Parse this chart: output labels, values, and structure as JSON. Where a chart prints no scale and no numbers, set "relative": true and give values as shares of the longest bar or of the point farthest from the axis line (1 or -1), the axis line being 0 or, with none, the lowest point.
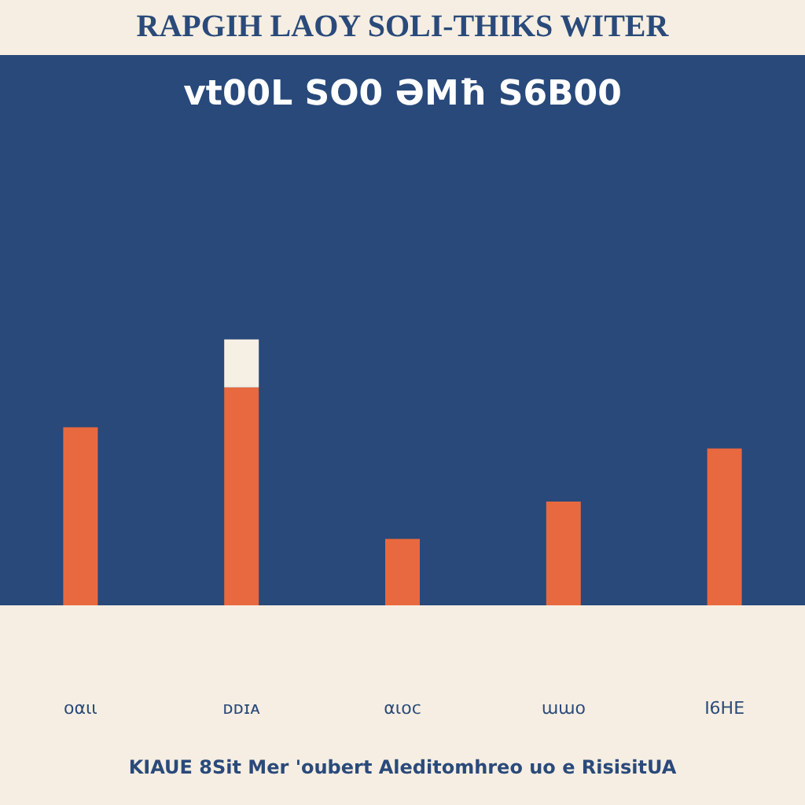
{
  "chart_data": {
    "type": "bar",
    "title": "RAPGIH LAOY SOLI-THIKS WITER",
    "subtitle": "vt00L SO0 ƏMħ S6B00",
    "categories": [
      "oαιι",
      "ᴅᴅɪᴀ",
      "αιoc",
      "ɯɯo",
      "I6HE"
    ],
    "stacked": true,
    "relative": true,
    "series": [
      {
        "color": "#e8693f",
        "values": [
          0.67,
          0.82,
          0.25,
          0.39,
          0.59
        ]
      },
      {
        "color": "#f6efe3",
        "values": [
          null,
          0.18,
          null,
          null,
          null
        ]
      }
    ],
    "annotations": [
      "KIAUE 8Sit Mer 'oubert Aleditomhreo uo e RisisitUA"
    ]
  }
}
